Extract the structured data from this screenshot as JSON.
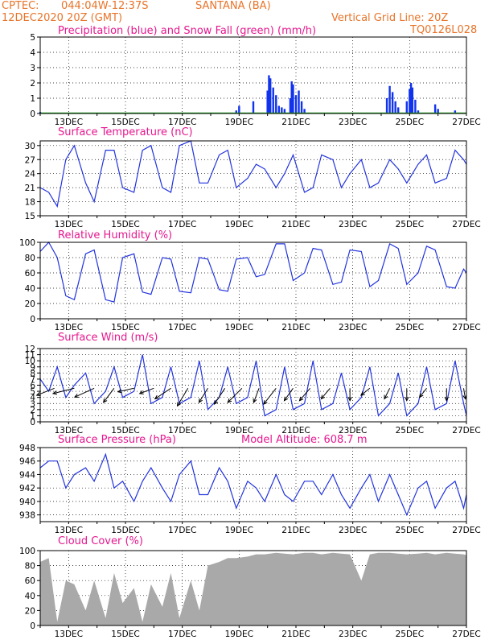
{
  "header": {
    "line1_left": "CPTEC:",
    "location_coords": "044:04W-12:37S",
    "location_name": "SANTANA (BA)",
    "line2_left": "12DEC2020 20Z (GMT)",
    "grid_line_text": "Vertical Grid Line: 20Z",
    "model_code": "TQ0126L028"
  },
  "colors": {
    "precip": "#1133ee",
    "snow": "#22aa22",
    "line": "#2233dd",
    "cloud": "#a9a9a9",
    "title": "#e6178f",
    "header": "#e8742a"
  },
  "x_axis": {
    "range": [
      12.0,
      27.0
    ],
    "labels": [
      "13DEC",
      "15DEC",
      "17DEC",
      "19DEC",
      "21DEC",
      "23DEC",
      "25DEC",
      "27DEC"
    ],
    "label_days": [
      13,
      15,
      17,
      19,
      21,
      23,
      25,
      27
    ]
  },
  "chart_data": [
    {
      "type": "bar",
      "title": "Precipitation (blue) and Snow Fall (green) (mm/h)",
      "ylim": [
        0,
        5
      ],
      "yticks": [
        0,
        1,
        2,
        3,
        4,
        5
      ],
      "series": [
        {
          "name": "Precipitation",
          "points": [
            [
              12.0,
              0.1
            ],
            [
              18.9,
              0.2
            ],
            [
              19.0,
              0.5
            ],
            [
              19.5,
              0.8
            ],
            [
              20.0,
              1.5
            ],
            [
              20.05,
              2.5
            ],
            [
              20.1,
              2.3
            ],
            [
              20.2,
              1.7
            ],
            [
              20.3,
              1.2
            ],
            [
              20.4,
              0.5
            ],
            [
              20.5,
              0.4
            ],
            [
              20.6,
              0.3
            ],
            [
              20.8,
              1.0
            ],
            [
              20.85,
              2.1
            ],
            [
              20.9,
              1.9
            ],
            [
              21.0,
              1.2
            ],
            [
              21.1,
              1.5
            ],
            [
              21.2,
              0.8
            ],
            [
              21.3,
              0.3
            ],
            [
              24.2,
              1.0
            ],
            [
              24.3,
              1.8
            ],
            [
              24.4,
              1.4
            ],
            [
              24.5,
              0.8
            ],
            [
              24.6,
              0.4
            ],
            [
              24.9,
              0.8
            ],
            [
              25.0,
              1.6
            ],
            [
              25.05,
              2.0
            ],
            [
              25.1,
              1.7
            ],
            [
              25.2,
              0.9
            ],
            [
              25.3,
              0.2
            ],
            [
              25.9,
              0.6
            ],
            [
              26.0,
              0.3
            ],
            [
              26.6,
              0.2
            ]
          ]
        },
        {
          "name": "Snow Fall",
          "points": []
        }
      ]
    },
    {
      "type": "line",
      "title": "Surface Temperature (nC)",
      "ylim": [
        15,
        31
      ],
      "yticks": [
        15,
        18,
        21,
        24,
        27,
        30
      ],
      "x": [
        12.0,
        12.3,
        12.6,
        12.9,
        13.2,
        13.6,
        13.9,
        14.3,
        14.6,
        14.9,
        15.3,
        15.6,
        15.9,
        16.3,
        16.6,
        16.9,
        17.3,
        17.6,
        17.9,
        18.3,
        18.6,
        18.9,
        19.3,
        19.6,
        19.9,
        20.3,
        20.6,
        20.9,
        21.3,
        21.6,
        21.9,
        22.3,
        22.6,
        22.9,
        23.3,
        23.6,
        23.9,
        24.3,
        24.6,
        24.9,
        25.3,
        25.6,
        25.9,
        26.3,
        26.6,
        26.9,
        27.0
      ],
      "values": [
        21,
        20,
        17,
        27,
        30,
        22,
        18,
        29,
        29,
        21,
        20,
        29,
        30,
        21,
        20,
        30,
        31,
        22,
        22,
        28,
        29,
        21,
        23,
        26,
        25,
        21,
        24,
        28,
        20,
        21,
        28,
        27,
        21,
        24,
        27,
        21,
        22,
        27,
        25,
        22,
        26,
        28,
        22,
        23,
        29,
        27,
        26
      ]
    },
    {
      "type": "line",
      "title": "Relative Humidity (%)",
      "ylim": [
        0,
        100
      ],
      "yticks": [
        0,
        20,
        40,
        60,
        80,
        100
      ],
      "x": [
        12.0,
        12.3,
        12.6,
        12.9,
        13.2,
        13.6,
        13.9,
        14.3,
        14.6,
        14.9,
        15.3,
        15.6,
        15.9,
        16.3,
        16.6,
        16.9,
        17.3,
        17.6,
        17.9,
        18.3,
        18.6,
        18.9,
        19.3,
        19.6,
        19.9,
        20.3,
        20.6,
        20.9,
        21.3,
        21.6,
        21.9,
        22.3,
        22.6,
        22.9,
        23.3,
        23.6,
        23.9,
        24.3,
        24.6,
        24.9,
        25.3,
        25.6,
        25.9,
        26.3,
        26.6,
        26.9,
        27.0
      ],
      "values": [
        88,
        100,
        80,
        30,
        25,
        85,
        90,
        25,
        22,
        80,
        85,
        35,
        32,
        80,
        78,
        36,
        34,
        80,
        78,
        38,
        36,
        78,
        80,
        55,
        58,
        98,
        98,
        50,
        60,
        92,
        90,
        45,
        48,
        90,
        88,
        42,
        50,
        98,
        92,
        45,
        60,
        95,
        90,
        42,
        40,
        65,
        60
      ]
    },
    {
      "type": "line",
      "title": "Surface Wind (m/s)",
      "ylim": [
        0,
        12
      ],
      "yticks": [
        0,
        1,
        2,
        3,
        4,
        5,
        6,
        7,
        8,
        9,
        10,
        11,
        12
      ],
      "x": [
        12.0,
        12.3,
        12.6,
        12.9,
        13.2,
        13.6,
        13.9,
        14.3,
        14.6,
        14.9,
        15.3,
        15.6,
        15.9,
        16.3,
        16.6,
        16.9,
        17.3,
        17.6,
        17.9,
        18.3,
        18.6,
        18.9,
        19.3,
        19.6,
        19.9,
        20.3,
        20.6,
        20.9,
        21.3,
        21.6,
        21.9,
        22.3,
        22.6,
        22.9,
        23.3,
        23.6,
        23.9,
        24.3,
        24.6,
        24.9,
        25.3,
        25.6,
        25.9,
        26.3,
        26.6,
        26.9,
        27.0
      ],
      "values": [
        7,
        5,
        9,
        4,
        6,
        8,
        3,
        5,
        9,
        4,
        5,
        11,
        3,
        4,
        9,
        3,
        4,
        10,
        2,
        4,
        9,
        3,
        4,
        10,
        1,
        2,
        9,
        2,
        3,
        10,
        2,
        3,
        8,
        2,
        4,
        9,
        1,
        3,
        8,
        1,
        3,
        9,
        2,
        3,
        10,
        3,
        1
      ],
      "vectors": [
        [
          12.5,
          -1.0,
          -0.4
        ],
        [
          13.2,
          -1.2,
          -0.3
        ],
        [
          13.9,
          -1.1,
          -0.5
        ],
        [
          14.6,
          -0.6,
          -0.8
        ],
        [
          15.3,
          -0.9,
          -0.2
        ],
        [
          16.0,
          -0.8,
          -0.3
        ],
        [
          16.6,
          -0.9,
          -0.6
        ],
        [
          17.2,
          -0.6,
          -1.0
        ],
        [
          17.9,
          -0.5,
          -0.8
        ],
        [
          18.5,
          -0.6,
          -0.9
        ],
        [
          19.1,
          -0.8,
          -0.8
        ],
        [
          19.7,
          -0.3,
          -0.8
        ],
        [
          20.3,
          -0.7,
          -0.9
        ],
        [
          20.9,
          -0.5,
          -0.7
        ],
        [
          21.5,
          -0.6,
          -0.7
        ],
        [
          22.2,
          -0.5,
          -0.6
        ],
        [
          22.9,
          0.0,
          -0.7
        ],
        [
          23.6,
          -0.5,
          -0.4
        ],
        [
          24.3,
          -0.3,
          -0.6
        ],
        [
          24.9,
          0.0,
          -0.7
        ],
        [
          25.6,
          -0.4,
          -0.5
        ],
        [
          26.3,
          0.0,
          -0.7
        ],
        [
          26.9,
          0.1,
          -0.6
        ]
      ]
    },
    {
      "type": "line",
      "title": "Surface Pressure (hPa)",
      "annotation": "Model Altitude: 608.7 m",
      "ylim": [
        937,
        948
      ],
      "yticks": [
        938,
        940,
        942,
        944,
        946,
        948
      ],
      "x": [
        12.0,
        12.3,
        12.6,
        12.9,
        13.2,
        13.6,
        13.9,
        14.3,
        14.6,
        14.9,
        15.3,
        15.6,
        15.9,
        16.3,
        16.6,
        16.9,
        17.3,
        17.6,
        17.9,
        18.3,
        18.6,
        18.9,
        19.3,
        19.6,
        19.9,
        20.3,
        20.6,
        20.9,
        21.3,
        21.6,
        21.9,
        22.3,
        22.6,
        22.9,
        23.3,
        23.6,
        23.9,
        24.3,
        24.6,
        24.9,
        25.3,
        25.6,
        25.9,
        26.3,
        26.6,
        26.9,
        27.0
      ],
      "values": [
        945,
        946,
        946,
        942,
        944,
        945,
        943,
        947,
        942,
        943,
        940,
        943,
        945,
        942,
        940,
        944,
        946,
        941,
        941,
        945,
        943,
        939,
        943,
        942,
        940,
        944,
        941,
        940,
        943,
        943,
        941,
        944,
        941,
        939,
        942,
        944,
        940,
        944,
        941,
        938,
        942,
        943,
        939,
        942,
        943,
        939,
        941
      ]
    },
    {
      "type": "area",
      "title": "Cloud Cover (%)",
      "ylim": [
        0,
        100
      ],
      "yticks": [
        0,
        20,
        40,
        60,
        80,
        100
      ],
      "x": [
        12.0,
        12.3,
        12.6,
        12.9,
        13.2,
        13.6,
        13.9,
        14.3,
        14.6,
        14.9,
        15.3,
        15.6,
        15.9,
        16.3,
        16.6,
        16.9,
        17.3,
        17.6,
        17.9,
        18.3,
        18.6,
        18.9,
        19.3,
        19.6,
        19.9,
        20.3,
        20.6,
        20.9,
        21.3,
        21.6,
        21.9,
        22.3,
        22.6,
        22.9,
        23.3,
        23.6,
        23.9,
        24.3,
        24.6,
        24.9,
        25.3,
        25.6,
        25.9,
        26.3,
        26.6,
        26.9,
        27.0
      ],
      "values": [
        85,
        90,
        5,
        60,
        55,
        20,
        60,
        10,
        70,
        30,
        50,
        5,
        55,
        25,
        70,
        10,
        60,
        20,
        80,
        85,
        90,
        90,
        92,
        95,
        95,
        97,
        96,
        95,
        97,
        97,
        95,
        97,
        96,
        95,
        60,
        95,
        97,
        97,
        96,
        95,
        96,
        97,
        95,
        97,
        96,
        95,
        94
      ]
    }
  ]
}
